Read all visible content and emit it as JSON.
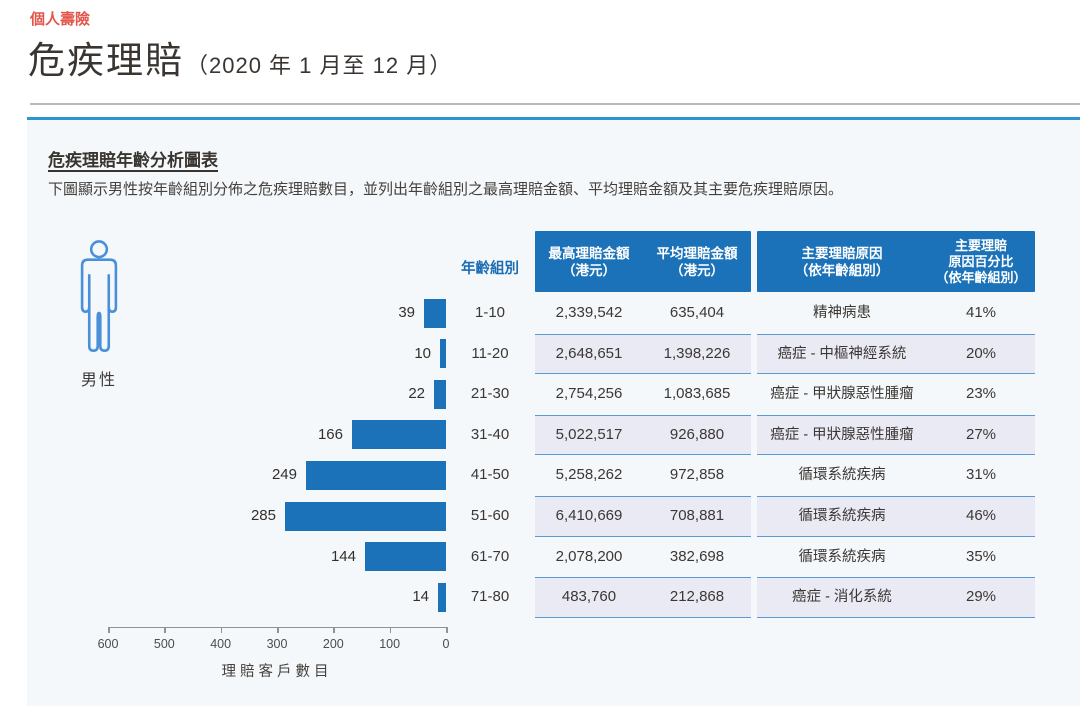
{
  "page": {
    "category_label": "個人壽險",
    "title": "危疾理賠",
    "title_period": "（2020 年 1 月至 12 月）"
  },
  "panel": {
    "heading": "危疾理賠年齡分析圖表",
    "description": "下圖顯示男性按年齡組別分佈之危疾理賠數目，並列出年齡組別之最高理賠金額、平均理賠金額及其主要危疾理賠原因。",
    "gender_label": "男性",
    "gender_icon": "male-person-icon",
    "columns": {
      "age": "年齡組別",
      "max1": "最高理賠金額",
      "max2": "（港元）",
      "avg1": "平均理賠金額",
      "avg2": "（港元）",
      "reason1": "主要理賠原因",
      "reason2": "（依年齡組別）",
      "pct1": "主要理賠",
      "pct2": "原因百分比",
      "pct3": "（依年齡組別）"
    }
  },
  "colors": {
    "accent_red": "#e2574b",
    "header_blue": "#1b72b8",
    "bar_blue": "#1b72b8",
    "panel_border_blue": "#2e95d3",
    "stripe_bg": "#e9eaf4",
    "stripe_border": "#5b9bd5",
    "age_header_blue": "#1b6cb3"
  },
  "chart_data": {
    "type": "bar",
    "orientation": "horizontal",
    "title": "危疾理賠年齡分析圖表",
    "xlabel": "理賠客戶數目",
    "categories": [
      "1-10",
      "11-20",
      "21-30",
      "31-40",
      "41-50",
      "51-60",
      "61-70",
      "71-80"
    ],
    "values": [
      39,
      10,
      22,
      166,
      249,
      285,
      144,
      14
    ],
    "xlim": [
      600,
      0
    ],
    "x_ticks": [
      600,
      500,
      400,
      300,
      200,
      100,
      0
    ],
    "grid": false,
    "legend": "none",
    "table": {
      "headers": [
        "年齡組別",
        "最高理賠金額（港元）",
        "平均理賠金額（港元）",
        "主要理賠原因（依年齡組別）",
        "主要理賠原因百分比（依年齡組別）"
      ],
      "rows": [
        {
          "age": "1-10",
          "claims": 39,
          "max": "2,339,542",
          "avg": "635,404",
          "reason": "精神病患",
          "pct": "41%"
        },
        {
          "age": "11-20",
          "claims": 10,
          "max": "2,648,651",
          "avg": "1,398,226",
          "reason": "癌症 - 中樞神經系統",
          "pct": "20%"
        },
        {
          "age": "21-30",
          "claims": 22,
          "max": "2,754,256",
          "avg": "1,083,685",
          "reason": "癌症 - 甲狀腺惡性腫瘤",
          "pct": "23%"
        },
        {
          "age": "31-40",
          "claims": 166,
          "max": "5,022,517",
          "avg": "926,880",
          "reason": "癌症 - 甲狀腺惡性腫瘤",
          "pct": "27%"
        },
        {
          "age": "41-50",
          "claims": 249,
          "max": "5,258,262",
          "avg": "972,858",
          "reason": "循環系統疾病",
          "pct": "31%"
        },
        {
          "age": "51-60",
          "claims": 285,
          "max": "6,410,669",
          "avg": "708,881",
          "reason": "循環系統疾病",
          "pct": "46%"
        },
        {
          "age": "61-70",
          "claims": 144,
          "max": "2,078,200",
          "avg": "382,698",
          "reason": "循環系統疾病",
          "pct": "35%"
        },
        {
          "age": "71-80",
          "claims": 14,
          "max": "483,760",
          "avg": "212,868",
          "reason": "癌症 - 消化系統",
          "pct": "29%"
        }
      ]
    }
  }
}
